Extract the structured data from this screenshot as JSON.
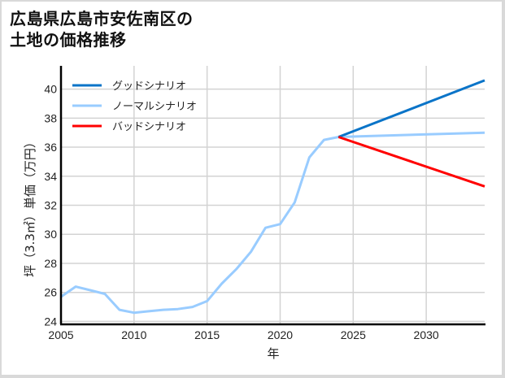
{
  "title": {
    "line1": "広島県広島市安佐南区の",
    "line2": "土地の価格推移"
  },
  "colors": {
    "good": "#0a74c8",
    "normal": "#99ccff",
    "bad": "#ff0000",
    "grid": "#d3d3d3",
    "axis": "#000000"
  },
  "chart_data": {
    "type": "line",
    "title": "広島県広島市安佐南区の土地の価格推移",
    "xlabel": "年",
    "ylabel": "坪（3.3㎡）単価（万円）",
    "xlim": [
      2005,
      2034
    ],
    "ylim": [
      23.8,
      41.6
    ],
    "xticks": [
      2005,
      2010,
      2015,
      2020,
      2025,
      2030
    ],
    "yticks": [
      24,
      26,
      28,
      30,
      32,
      34,
      36,
      38,
      40
    ],
    "grid": true,
    "legend_position": "upper left",
    "legend": [
      "グッドシナリオ",
      "ノーマルシナリオ",
      "バッドシナリオ"
    ],
    "series": [
      {
        "name": "ノーマルシナリオ (実績)",
        "x": [
          2005,
          2006,
          2007,
          2008,
          2009,
          2010,
          2011,
          2012,
          2013,
          2014,
          2015,
          2016,
          2017,
          2018,
          2019,
          2020,
          2021,
          2022,
          2023,
          2024
        ],
        "values": [
          25.7,
          26.4,
          26.15,
          25.9,
          24.8,
          24.6,
          24.7,
          24.8,
          24.85,
          25.0,
          25.4,
          26.6,
          27.6,
          28.8,
          30.45,
          30.7,
          32.2,
          35.3,
          36.5,
          36.7
        ]
      },
      {
        "name": "グッドシナリオ",
        "x": [
          2024,
          2034
        ],
        "values": [
          36.7,
          40.6
        ]
      },
      {
        "name": "ノーマルシナリオ",
        "x": [
          2024,
          2034
        ],
        "values": [
          36.7,
          37.0
        ]
      },
      {
        "name": "バッドシナリオ",
        "x": [
          2024,
          2034
        ],
        "values": [
          36.7,
          33.3
        ]
      }
    ]
  },
  "legend": {
    "good": "グッドシナリオ",
    "normal": "ノーマルシナリオ",
    "bad": "バッドシナリオ"
  },
  "axes": {
    "xlabel": "年",
    "ylabel": "坪（3.3㎡）単価（万円）",
    "xticks": [
      "2005",
      "2010",
      "2015",
      "2020",
      "2025",
      "2030"
    ],
    "yticks": [
      "24",
      "26",
      "28",
      "30",
      "32",
      "34",
      "36",
      "38",
      "40"
    ]
  }
}
